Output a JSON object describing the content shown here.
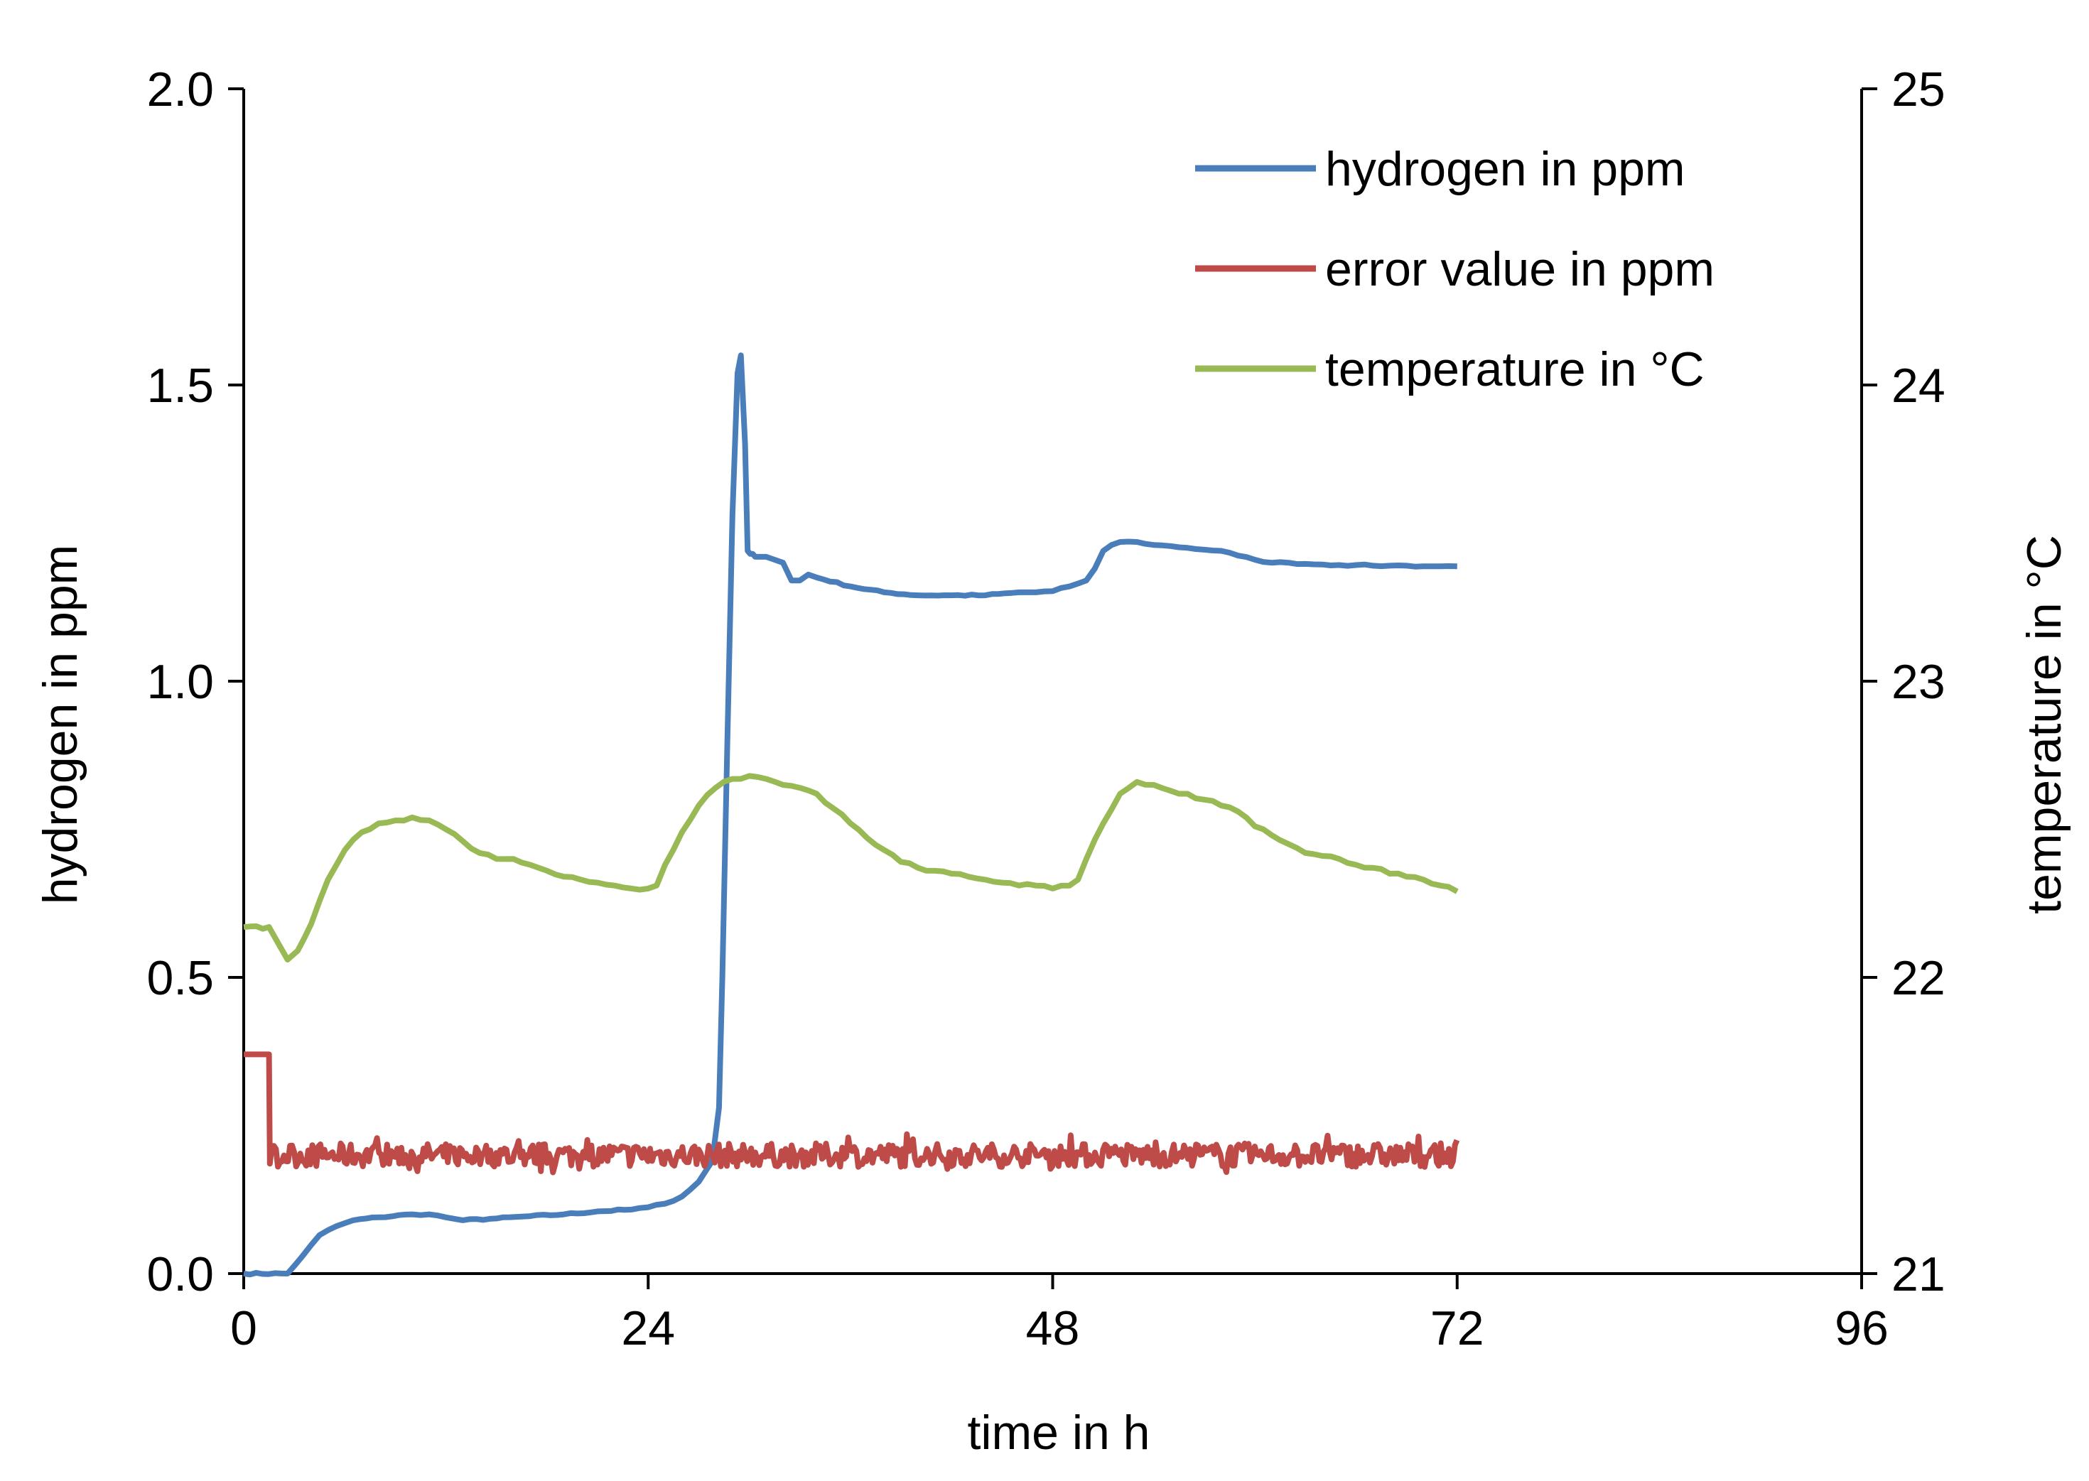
{
  "chart_data": {
    "type": "line",
    "title": "",
    "xlabel": "time in h",
    "ylabel": "hydrogen in ppm",
    "y2label": "temperature in °C",
    "xlim": [
      0,
      96
    ],
    "ylim": [
      0,
      2.0
    ],
    "y2lim": [
      21,
      25
    ],
    "xticks": [
      "0",
      "24",
      "48",
      "72",
      "96"
    ],
    "yticks": [
      "0.0",
      "0.5",
      "1.0",
      "1.5",
      "2.0"
    ],
    "y2ticks": [
      "21",
      "22",
      "23",
      "24",
      "25"
    ],
    "grid": false,
    "legend": "top-right",
    "series": [
      {
        "name": "hydrogen in ppm",
        "axis": "left",
        "color": "#4a7ebb",
        "x": [
          0,
          2.6,
          3.5,
          4.5,
          5.5,
          6.5,
          8,
          10,
          11,
          12,
          13,
          15,
          17,
          19,
          21,
          23,
          24,
          25,
          26,
          27,
          27.8,
          28.2,
          28.4,
          28.7,
          29.0,
          29.3,
          29.5,
          29.75,
          29.9,
          30.05,
          30.2,
          30.35,
          31,
          32,
          32.5,
          33,
          33.5,
          34,
          36,
          38,
          40,
          42,
          44,
          46,
          47,
          48,
          49,
          50,
          50.5,
          51,
          51.5,
          52,
          53,
          54,
          55,
          56,
          57,
          58,
          59,
          60,
          61,
          62,
          63,
          64,
          65,
          66,
          67,
          68,
          69,
          70,
          71,
          72
        ],
        "y": [
          0,
          0,
          0.03,
          0.065,
          0.08,
          0.09,
          0.095,
          0.1,
          0.1,
          0.095,
          0.09,
          0.093,
          0.097,
          0.1,
          0.105,
          0.108,
          0.112,
          0.118,
          0.13,
          0.155,
          0.19,
          0.28,
          0.5,
          0.9,
          1.28,
          1.52,
          1.55,
          1.4,
          1.22,
          1.215,
          1.215,
          1.21,
          1.21,
          1.2,
          1.17,
          1.17,
          1.18,
          1.175,
          1.16,
          1.15,
          1.145,
          1.145,
          1.145,
          1.15,
          1.15,
          1.152,
          1.16,
          1.17,
          1.19,
          1.22,
          1.23,
          1.235,
          1.235,
          1.23,
          1.228,
          1.225,
          1.222,
          1.22,
          1.212,
          1.205,
          1.2,
          1.2,
          1.198,
          1.197,
          1.196,
          1.196,
          1.195,
          1.195,
          1.195,
          1.194,
          1.194,
          1.194
        ]
      },
      {
        "name": "error value in ppm",
        "axis": "left",
        "color": "#be4b48",
        "x": [
          0,
          1.5,
          1.55,
          72
        ],
        "y": [
          0.37,
          0.37,
          0.2,
          0.2
        ],
        "noise": 0.02
      },
      {
        "name": "temperature in °C",
        "axis": "right",
        "color": "#98b954",
        "x": [
          0,
          1.5,
          2,
          2.6,
          3.2,
          4,
          5,
          6,
          7,
          8,
          9,
          10,
          11,
          12,
          13,
          14,
          15,
          16,
          17,
          18,
          19,
          20,
          21,
          22,
          23,
          24,
          24.5,
          25,
          26,
          27,
          28,
          29,
          30,
          31,
          32,
          33,
          34,
          35,
          36,
          37,
          38,
          39,
          40,
          41,
          42,
          43,
          44,
          45,
          46,
          47,
          48,
          49,
          49.5,
          50,
          51,
          52,
          53,
          54,
          55,
          56,
          57,
          58,
          59,
          60,
          61,
          62,
          63,
          64,
          65,
          66,
          67,
          68,
          69,
          70,
          71,
          72
        ],
        "y": [
          22.17,
          22.17,
          22.12,
          22.06,
          22.09,
          22.18,
          22.33,
          22.43,
          22.49,
          22.52,
          22.53,
          22.54,
          22.53,
          22.5,
          22.46,
          22.42,
          22.4,
          22.4,
          22.38,
          22.36,
          22.34,
          22.33,
          22.32,
          22.31,
          22.3,
          22.3,
          22.31,
          22.38,
          22.49,
          22.58,
          22.64,
          22.67,
          22.68,
          22.67,
          22.65,
          22.64,
          22.62,
          22.57,
          22.52,
          22.47,
          22.43,
          22.39,
          22.37,
          22.36,
          22.35,
          22.34,
          22.33,
          22.32,
          22.31,
          22.31,
          22.3,
          22.31,
          22.33,
          22.4,
          22.52,
          22.62,
          22.66,
          22.65,
          22.63,
          22.62,
          22.6,
          22.58,
          22.56,
          22.51,
          22.48,
          22.45,
          22.42,
          22.41,
          22.4,
          22.38,
          22.37,
          22.35,
          22.34,
          22.33,
          22.31,
          22.29
        ]
      }
    ]
  }
}
